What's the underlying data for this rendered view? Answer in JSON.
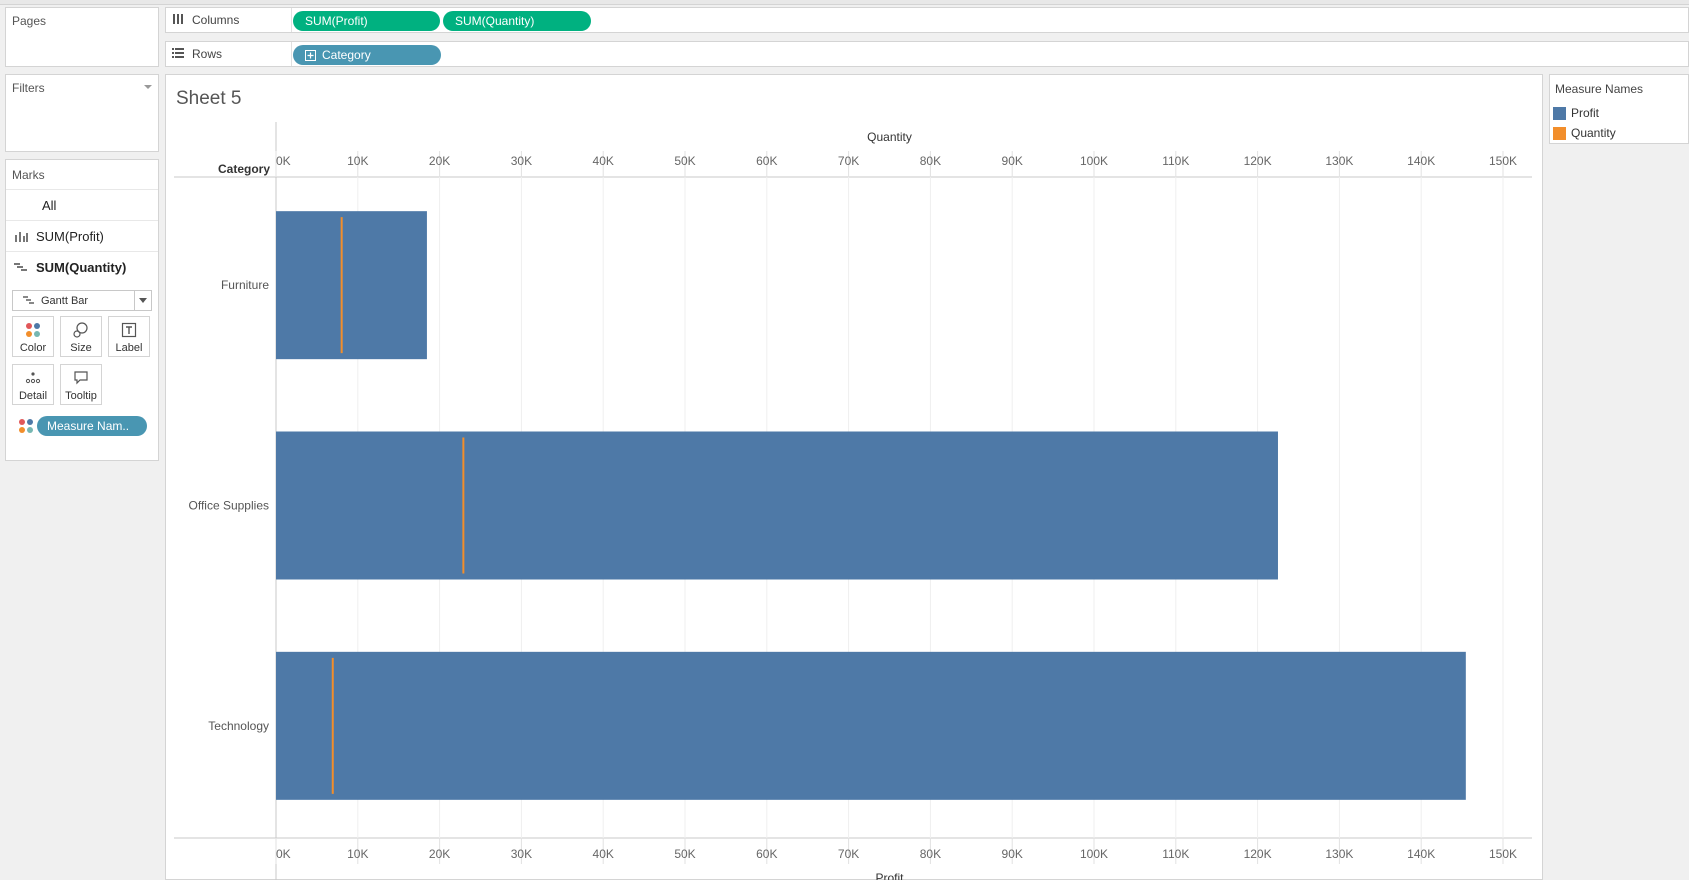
{
  "left": {
    "pages_title": "Pages",
    "filters_title": "Filters",
    "marks_title": "Marks",
    "marks_rows": [
      {
        "label": "All"
      },
      {
        "label": "SUM(Profit)"
      },
      {
        "label": "SUM(Quantity)"
      }
    ],
    "mark_type": "Gantt Bar",
    "mark_buttons": [
      "Color",
      "Size",
      "Label",
      "Detail",
      "Tooltip"
    ],
    "color_pill": "Measure Nam.."
  },
  "shelves": {
    "columns_label": "Columns",
    "columns_pills": [
      "SUM(Profit)",
      "SUM(Quantity)"
    ],
    "rows_label": "Rows",
    "rows_pills": [
      "Category"
    ]
  },
  "sheet": {
    "title": "Sheet 5"
  },
  "legend": {
    "title": "Measure Names",
    "items": [
      {
        "label": "Profit",
        "color": "#4e79a7"
      },
      {
        "label": "Quantity",
        "color": "#f28e2b"
      }
    ]
  },
  "chart_data": {
    "type": "bar",
    "row_header": "Category",
    "top_axis_title": "Quantity",
    "bottom_axis_title": "Profit",
    "ticks": [
      "0K",
      "10K",
      "20K",
      "30K",
      "40K",
      "50K",
      "60K",
      "70K",
      "80K",
      "90K",
      "100K",
      "110K",
      "120K",
      "130K",
      "140K",
      "150K"
    ],
    "xlim": [
      0,
      150000
    ],
    "categories": [
      "Furniture",
      "Office Supplies",
      "Technology"
    ],
    "series": [
      {
        "name": "Profit",
        "mark": "bar",
        "values": [
          18451,
          122491,
          145455
        ],
        "color": "#4e79a7"
      },
      {
        "name": "Quantity",
        "mark": "gantt",
        "values": [
          8028,
          22906,
          6939
        ],
        "color": "#f28e2b"
      }
    ],
    "gridlines": true
  }
}
